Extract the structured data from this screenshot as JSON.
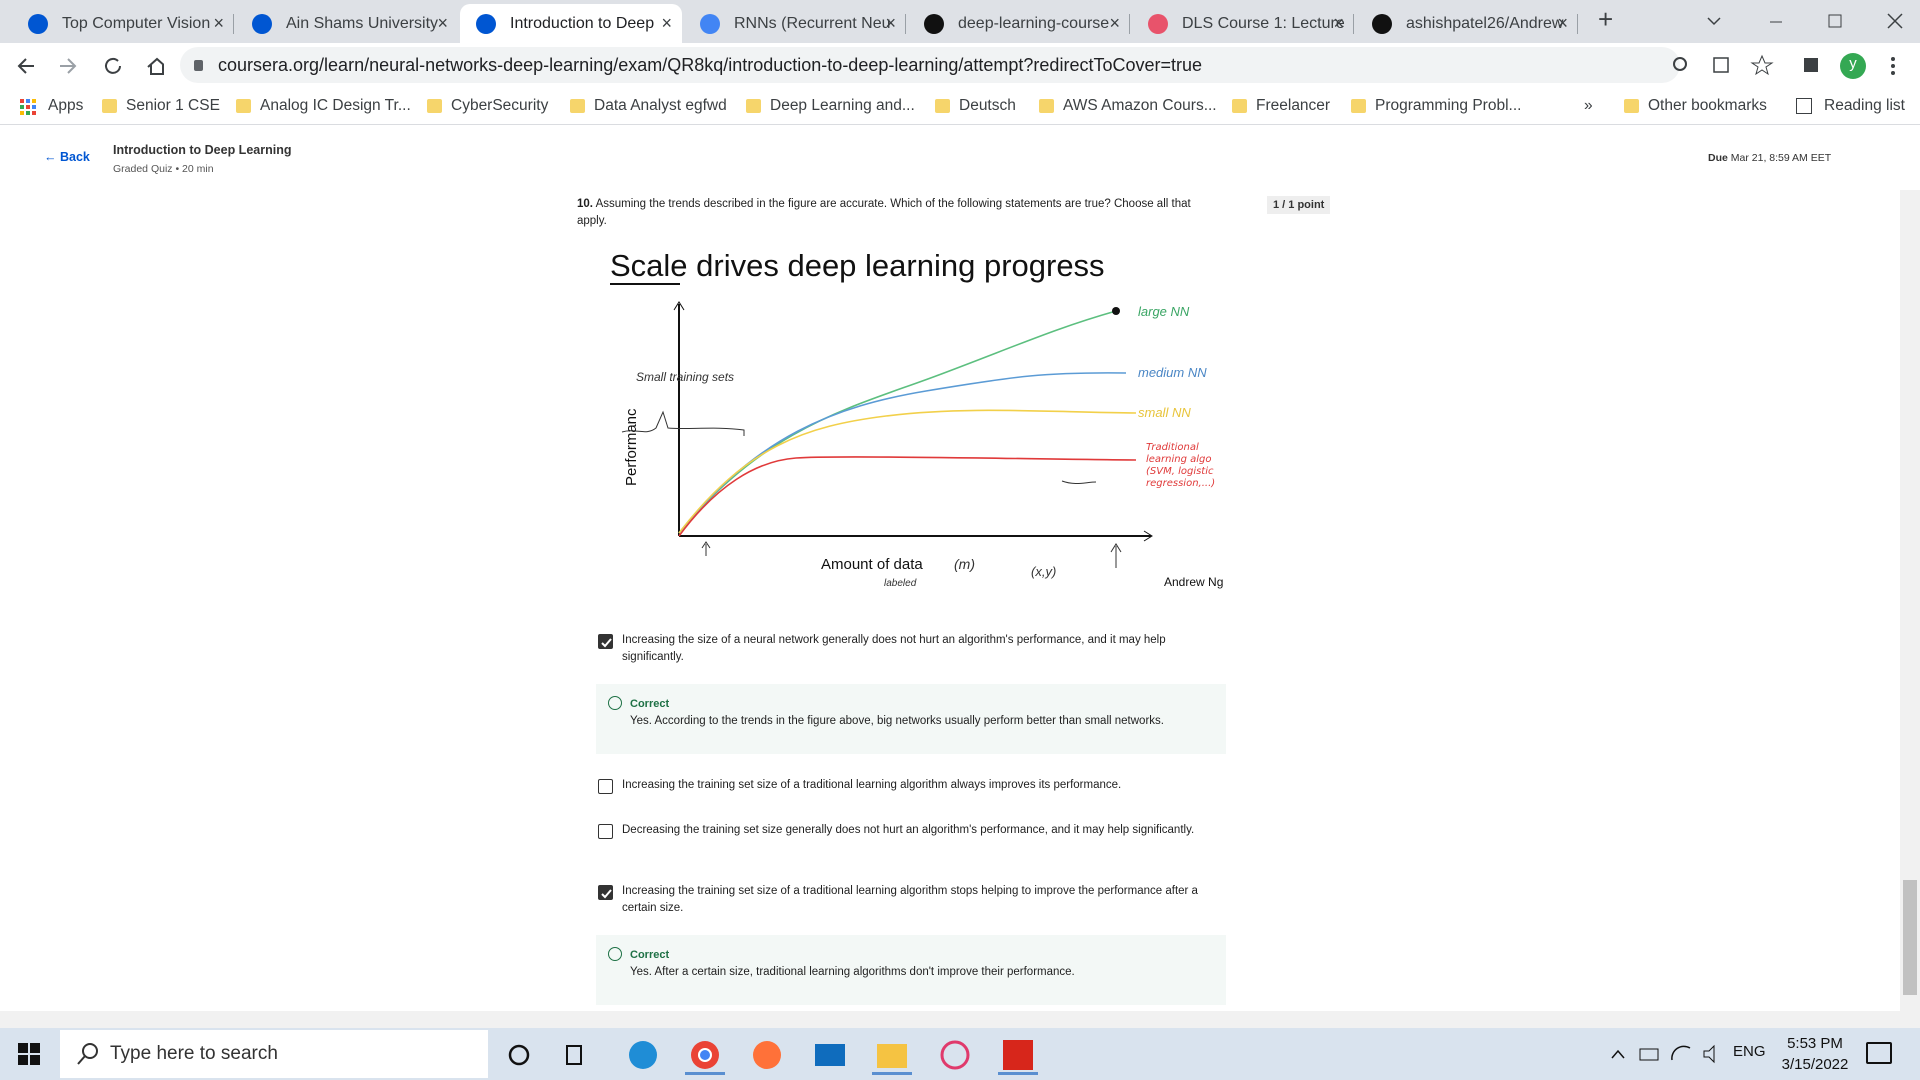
{
  "browser": {
    "tabs": [
      "Top Computer Vision",
      "Ain Shams University",
      "Introduction to Deep",
      "RNNs (Recurrent Neu",
      "deep-learning-course",
      "DLS Course 1: Lecture",
      "ashishpatel26/Andrew"
    ],
    "active_tab": 2,
    "url": "coursera.org/learn/neural-networks-deep-learning/exam/QR8kq/introduction-to-deep-learning/attempt?redirectToCover=true",
    "profile_initial": "y",
    "apps": "Apps",
    "bookmarks": [
      "Senior 1 CSE",
      "Analog IC Design Tr...",
      "CyberSecurity",
      "Data Analyst egfwd",
      "Deep Learning and...",
      "Deutsch",
      "AWS Amazon Cours...",
      "Freelancer",
      "Programming Probl..."
    ],
    "more": "»",
    "other_bookmarks": "Other bookmarks",
    "reading_list": "Reading list"
  },
  "header": {
    "back": "Back",
    "title": "Introduction to Deep Learning",
    "subtitle": "Graded Quiz • 20 min",
    "due_label": "Due",
    "due": "Mar 21, 8:59 AM EET"
  },
  "question": {
    "number": "10.",
    "text": "Assuming the trends described in the figure are accurate. Which of the following statements are true? Choose all that apply.",
    "points": "1 / 1 point",
    "figure": {
      "title": "Scale drives deep learning progress",
      "y_label": "Performanc",
      "x_label": "Amount of data",
      "x_unit": "(m)",
      "x_note": "labeled",
      "xy_note": "(x,y)",
      "small_sets": "Small training sets",
      "curves": [
        "large NN",
        "medium NN",
        "small NN",
        "Traditional learning algo (SVM, logistic regression,...)"
      ],
      "credit": "Andrew Ng"
    },
    "options": [
      {
        "text": "Increasing the size of a neural network generally does not hurt an algorithm's performance, and it may help significantly.",
        "checked": true,
        "feedback": {
          "label": "Correct",
          "text": "Yes. According to the trends in the figure above, big networks usually perform better than small networks."
        }
      },
      {
        "text": "Increasing the training set size of a traditional learning algorithm always improves its performance.",
        "checked": false
      },
      {
        "text": "Decreasing the training set size generally does not hurt an algorithm's performance, and it may help significantly.",
        "checked": false
      },
      {
        "text": "Increasing the training set size of a traditional learning algorithm stops helping to improve the performance after a certain size.",
        "checked": true,
        "feedback": {
          "label": "Correct",
          "text": "Yes. After a certain size, traditional learning algorithms don't improve their performance."
        }
      }
    ]
  },
  "taskbar": {
    "search": "Type here to search",
    "language": "ENG",
    "time": "5:53 PM",
    "date": "3/15/2022"
  }
}
